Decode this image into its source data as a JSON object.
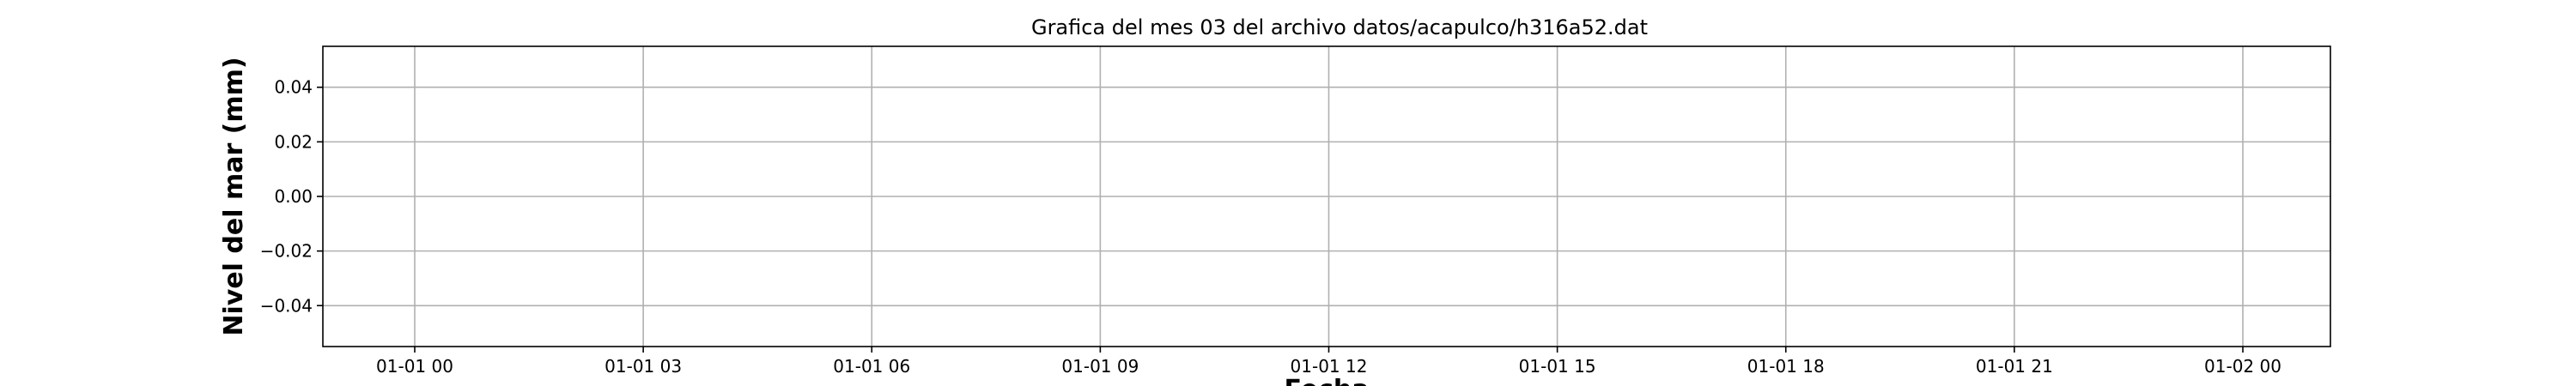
{
  "chart_data": {
    "type": "line",
    "title": "Grafica del mes 03 del archivo datos/acapulco/h316a52.dat",
    "xlabel": "Fecha",
    "ylabel": "Nivel del mar (mm)",
    "x_ticks": [
      "01-01 00",
      "01-01 03",
      "01-01 06",
      "01-01 09",
      "01-01 12",
      "01-01 15",
      "01-01 18",
      "01-01 21",
      "01-02 00"
    ],
    "y_ticks": [
      "0.04",
      "0.02",
      "0.00",
      "−0.02",
      "−0.04"
    ],
    "y_tick_values": [
      0.04,
      0.02,
      0.0,
      -0.02,
      -0.04
    ],
    "ylim": [
      -0.055,
      0.055
    ],
    "grid": true,
    "series": []
  }
}
